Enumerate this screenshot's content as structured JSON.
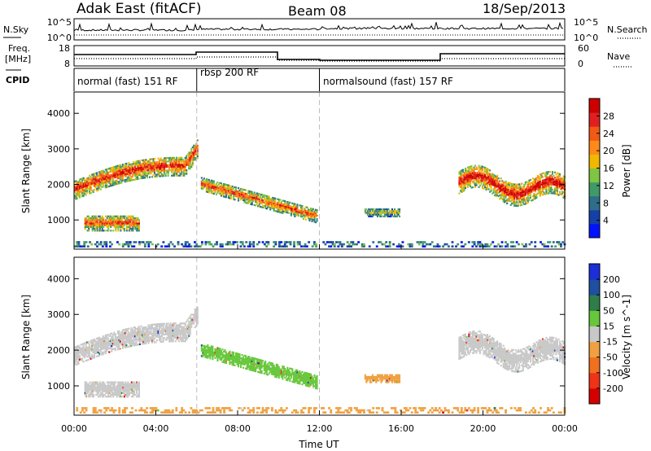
{
  "header": {
    "station": "Adak East (fitACF)",
    "beam": "Beam 08",
    "date": "18/Sep/2013"
  },
  "summary_panels": {
    "nsky_label": "N.Sky",
    "nsky_ticks": [
      "10^5",
      "10^0"
    ],
    "nsearch_label": "N.Search",
    "nsearch_ticks": [
      "10^5",
      "10^0"
    ],
    "freq_label_line1": "Freq.",
    "freq_label_line2": "[MHz]",
    "freq_ticks": [
      "18",
      "8"
    ],
    "nave_label": "Nave",
    "nave_ticks": [
      "60",
      "0"
    ],
    "cpid_label": "CPID"
  },
  "cpid": {
    "segments": [
      {
        "name": "normal (fast) 151 RF",
        "start": 0,
        "end": 6
      },
      {
        "name": "rbsp 200 RF",
        "start": 6,
        "end": 12
      },
      {
        "name": "normalsound (fast) 157 RF",
        "start": 12,
        "end": 24
      }
    ],
    "dividers": [
      6,
      12
    ]
  },
  "chart_data": [
    {
      "type": "heatmap",
      "title": "",
      "quantity": "Power",
      "xlabel": "Time UT",
      "ylabel": "Slant Range [km]",
      "xlim": [
        0,
        24
      ],
      "ylim": [
        180,
        4600
      ],
      "x_ticks": [
        "00:00",
        "04:00",
        "08:00",
        "12:00",
        "16:00",
        "20:00",
        "00:00"
      ],
      "y_ticks": [
        "1000",
        "2000",
        "3000",
        "4000"
      ],
      "colorbar": {
        "label": "Power [dB]",
        "ticks": [
          "4",
          "8",
          "12",
          "16",
          "20",
          "24",
          "28"
        ],
        "colors": [
          "#0012ff",
          "#1540a8",
          "#2e6e8a",
          "#3f9a68",
          "#7fc443",
          "#f0b800",
          "#ff8a1a",
          "#f05a14",
          "#e02020",
          "#cc0000"
        ]
      },
      "regions": [
        {
          "name": "morning band",
          "t_start": 0.0,
          "t_end": 6.0,
          "range_start": 1950,
          "range_end": 2600,
          "range_width": 550,
          "peak_db": 24
        },
        {
          "name": "early low patch",
          "t_start": 0.5,
          "t_end": 3.2,
          "range_start": 900,
          "range_end": 900,
          "range_width": 450,
          "peak_db": 22
        },
        {
          "name": "rbsp descending band",
          "t_start": 6.2,
          "t_end": 11.9,
          "range_start": 2000,
          "range_end": 1080,
          "range_width": 380,
          "peak_db": 22
        },
        {
          "name": "afternoon patch",
          "t_start": 14.2,
          "t_end": 15.9,
          "range_start": 1200,
          "range_end": 1200,
          "range_width": 250,
          "peak_db": 14
        },
        {
          "name": "evening band",
          "t_start": 18.8,
          "t_end": 24.0,
          "range_start": 2050,
          "range_end": 1800,
          "range_width": 650,
          "peak_db": 26
        },
        {
          "name": "near range ground echoes",
          "t_start": 0.0,
          "t_end": 24.0,
          "range_start": 300,
          "range_end": 300,
          "range_width": 150,
          "peak_db": 10
        }
      ]
    },
    {
      "type": "heatmap",
      "title": "",
      "quantity": "Velocity",
      "xlabel": "Time UT",
      "ylabel": "Slant Range [km]",
      "xlim": [
        0,
        24
      ],
      "ylim": [
        180,
        4600
      ],
      "x_ticks": [
        "00:00",
        "04:00",
        "08:00",
        "12:00",
        "16:00",
        "20:00",
        "00:00"
      ],
      "y_ticks": [
        "1000",
        "2000",
        "3000",
        "4000"
      ],
      "colorbar": {
        "label": "Velocity [m s^-1]",
        "ticks": [
          "200",
          "100",
          "50",
          "15",
          "-15",
          "-50",
          "-100",
          "-200"
        ],
        "colors": [
          "#1c2ed8",
          "#1e4fa0",
          "#2e7d4a",
          "#67c73a",
          "#c8c8c8",
          "#f0a040",
          "#f07020",
          "#ee3318",
          "#d40000"
        ]
      },
      "regions": [
        {
          "name": "morning band",
          "t_start": 0.0,
          "t_end": 6.0,
          "range_start": 1950,
          "range_end": 2600,
          "range_width": 550,
          "velocity": 0
        },
        {
          "name": "early low patch",
          "t_start": 0.5,
          "t_end": 3.2,
          "range_start": 900,
          "range_end": 900,
          "range_width": 450,
          "velocity": 0
        },
        {
          "name": "rbsp descending band",
          "t_start": 6.2,
          "t_end": 11.9,
          "range_start": 2000,
          "range_end": 1080,
          "range_width": 380,
          "velocity": 40
        },
        {
          "name": "afternoon patch",
          "t_start": 14.2,
          "t_end": 15.9,
          "range_start": 1200,
          "range_end": 1200,
          "range_width": 250,
          "velocity": -40
        },
        {
          "name": "evening band",
          "t_start": 18.8,
          "t_end": 24.0,
          "range_start": 2050,
          "range_end": 1800,
          "range_width": 650,
          "velocity": 0
        },
        {
          "name": "near range ground echoes",
          "t_start": 0.0,
          "t_end": 24.0,
          "range_start": 300,
          "range_end": 300,
          "range_width": 150,
          "velocity": -30
        }
      ]
    }
  ]
}
